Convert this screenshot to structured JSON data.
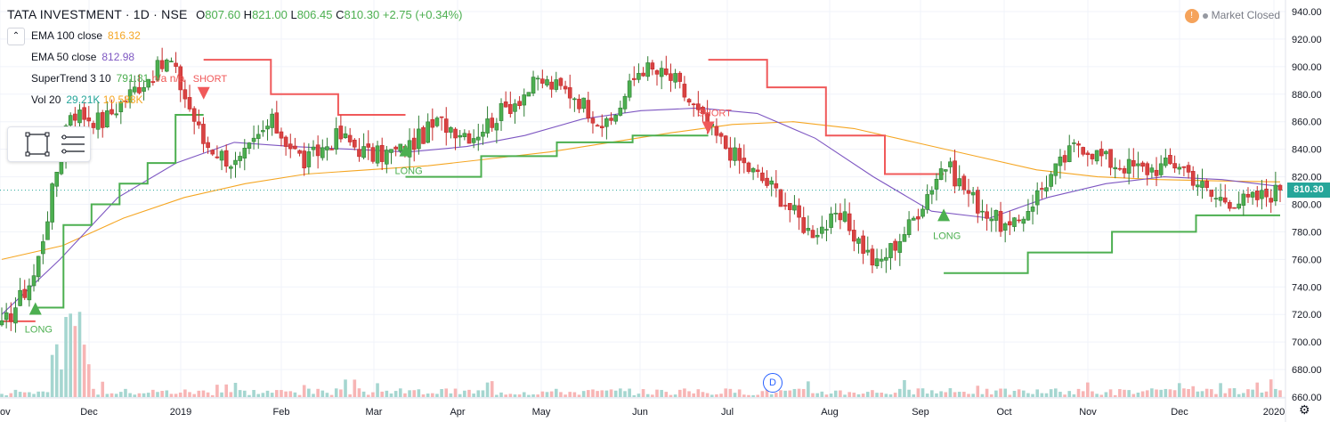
{
  "header": {
    "symbol": "TATA INVESTMENT · 1D · NSE",
    "open_label": "O",
    "open": "807.60",
    "high_label": "H",
    "high": "821.00",
    "low_label": "L",
    "low": "806.45",
    "close_label": "C",
    "close": "810.30",
    "change": "+2.75 (+0.34%)"
  },
  "indicators": {
    "ema100": {
      "label": "EMA 100 close",
      "value": "816.32",
      "color": "#f5a623"
    },
    "ema50": {
      "label": "EMA 50 close",
      "value": "812.98",
      "color": "#7e57c2"
    },
    "supertrend": {
      "label": "SuperTrend 3 10",
      "value": "791.81",
      "v2": "n/a",
      "v3": "n/a",
      "colors": [
        "#4caf50",
        "#ef5350",
        "#ef5350"
      ]
    },
    "volume": {
      "label": "Vol 20",
      "value": "29.21K",
      "v2": "10.588K",
      "colors": [
        "#26a69a",
        "#f5a623"
      ]
    }
  },
  "market_status": {
    "icon": "!",
    "label": "Market Closed"
  },
  "last_price_tag": "810.30",
  "dividend_marker": "D",
  "icons": {
    "collapse": "chevron-up-icon",
    "drawing": "rectangle-icon",
    "menu": "hamburger-icon",
    "settings": "gear-icon",
    "alert": "exclamation-icon"
  },
  "chart_data": {
    "type": "candlestick",
    "title": "TATA INVESTMENT · 1D · NSE",
    "y_axis": {
      "ticks": [
        660,
        680,
        700,
        720,
        740,
        760,
        780,
        800,
        820,
        840,
        860,
        880,
        900,
        920,
        940
      ],
      "range": [
        660,
        940
      ]
    },
    "x_axis": {
      "ticks": [
        "ov",
        "Dec",
        "2019",
        "Feb",
        "Mar",
        "Apr",
        "May",
        "Jun",
        "Jul",
        "Aug",
        "Sep",
        "Oct",
        "Nov",
        "Dec",
        "2020"
      ]
    },
    "colors": {
      "up": "#26a69a",
      "up_body": "#4caf50",
      "down": "#c62828",
      "down_body": "#d84343",
      "st_long": "#4caf50",
      "st_short": "#f0595a",
      "ema100": "#f5a623",
      "ema50": "#7e57c2",
      "vol_up": "#a5d6d0",
      "vol_down": "#f7b5b5"
    },
    "ohlc_anchor_points": [
      {
        "date": "Nov",
        "close": 710
      },
      {
        "date": "late Nov",
        "close": 750
      },
      {
        "date": "early Dec",
        "close": 868
      },
      {
        "date": "Dec",
        "close": 860
      },
      {
        "date": "late Dec",
        "close": 885
      },
      {
        "date": "2019",
        "close": 905
      },
      {
        "date": "mid Jan",
        "close": 845
      },
      {
        "date": "late Jan",
        "close": 828
      },
      {
        "date": "Feb",
        "close": 860
      },
      {
        "date": "mid Feb",
        "close": 830
      },
      {
        "date": "Mar",
        "close": 850
      },
      {
        "date": "mid Mar",
        "close": 835
      },
      {
        "date": "Apr",
        "close": 840
      },
      {
        "date": "mid Apr",
        "close": 860
      },
      {
        "date": "May",
        "close": 850
      },
      {
        "date": "mid May",
        "close": 870
      },
      {
        "date": "late May",
        "close": 890
      },
      {
        "date": "Jun",
        "close": 880
      },
      {
        "date": "mid Jun",
        "close": 855
      },
      {
        "date": "late Jun",
        "close": 900
      },
      {
        "date": "Jul",
        "close": 890
      },
      {
        "date": "mid Jul",
        "close": 855
      },
      {
        "date": "late Jul",
        "close": 830
      },
      {
        "date": "Aug",
        "close": 810
      },
      {
        "date": "mid Aug",
        "close": 780
      },
      {
        "date": "late Aug",
        "close": 790
      },
      {
        "date": "Sep",
        "close": 755
      },
      {
        "date": "mid Sep",
        "close": 785
      },
      {
        "date": "late Sep",
        "close": 830
      },
      {
        "date": "Oct",
        "close": 800
      },
      {
        "date": "mid Oct",
        "close": 780
      },
      {
        "date": "late Oct",
        "close": 815
      },
      {
        "date": "Nov",
        "close": 845
      },
      {
        "date": "mid Nov",
        "close": 830
      },
      {
        "date": "late Nov",
        "close": 825
      },
      {
        "date": "Dec",
        "close": 830
      },
      {
        "date": "mid Dec",
        "close": 805
      },
      {
        "date": "late Dec",
        "close": 802
      },
      {
        "date": "2020",
        "close": 810.3
      }
    ],
    "supertrend_segments": [
      {
        "trend": "short",
        "from": "Nov",
        "to": "late Nov",
        "level": 715
      },
      {
        "trend": "long",
        "from": "late Nov",
        "to": "mid Jan",
        "levels": [
          725,
          785,
          800,
          815,
          830,
          865
        ]
      },
      {
        "trend": "short",
        "from": "mid Jan",
        "to": "Apr",
        "levels": [
          905,
          880,
          865
        ]
      },
      {
        "trend": "long",
        "from": "Apr",
        "to": "mid Jul",
        "levels": [
          820,
          835,
          845,
          850
        ]
      },
      {
        "trend": "short",
        "from": "mid Jul",
        "to": "late Sep",
        "levels": [
          905,
          885,
          850,
          822
        ]
      },
      {
        "trend": "long",
        "from": "late Sep",
        "to": "2020",
        "levels": [
          750,
          765,
          780,
          792
        ]
      }
    ],
    "signals": [
      {
        "type": "LONG",
        "date": "late Nov",
        "price": 725
      },
      {
        "type": "SHORT",
        "date": "mid Jan",
        "price": 880
      },
      {
        "type": "LONG",
        "date": "Apr",
        "price": 840
      },
      {
        "type": "SHORT",
        "date": "mid Jul",
        "price": 855
      },
      {
        "type": "LONG",
        "date": "late Sep",
        "price": 793
      }
    ],
    "ema100_path": [
      760,
      770,
      790,
      805,
      815,
      822,
      825,
      828,
      833,
      838,
      845,
      852,
      858,
      860,
      855,
      845,
      835,
      825,
      820,
      818,
      817,
      816.32
    ],
    "ema50_path": [
      720,
      760,
      805,
      830,
      845,
      842,
      840,
      838,
      842,
      850,
      862,
      868,
      870,
      866,
      848,
      820,
      795,
      790,
      805,
      815,
      820,
      818,
      812.98
    ],
    "grid": true,
    "legend_position": "top-left"
  }
}
